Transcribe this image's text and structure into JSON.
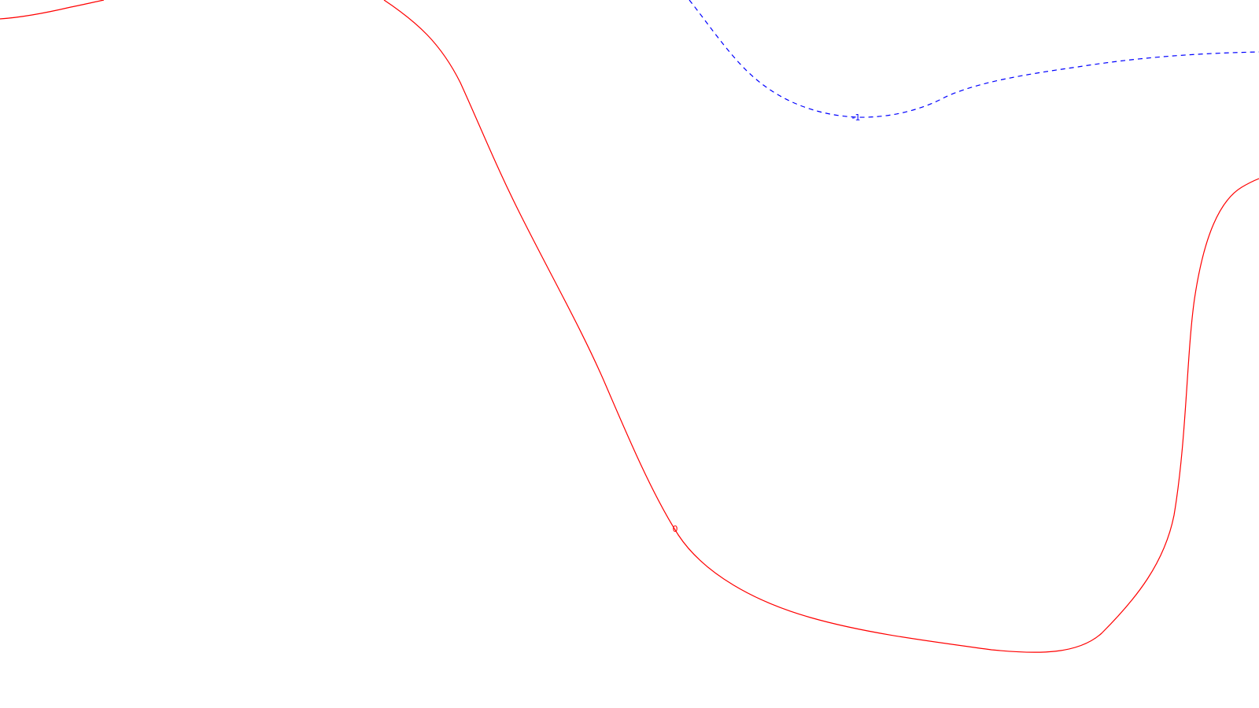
{
  "chart_data": {
    "type": "line",
    "title": "",
    "xlabel": "",
    "ylabel": "",
    "grid": false,
    "legend": "none",
    "series": [
      {
        "level_label": "-1",
        "color": "#0000ff",
        "style": "dashed"
      },
      {
        "level_label": "0",
        "color": "#ff0000",
        "style": "solid"
      }
    ]
  }
}
